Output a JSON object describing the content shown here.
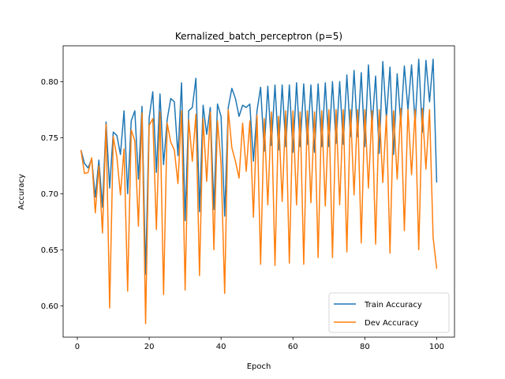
{
  "chart_data": {
    "type": "line",
    "title": "Kernalized_batch_perceptron (p=5)",
    "xlabel": "Epoch",
    "ylabel": "Accuracy",
    "xlim": [
      -3.95,
      104.95
    ],
    "ylim": [
      0.572,
      0.832
    ],
    "xticks": [
      0,
      20,
      40,
      60,
      80,
      100
    ],
    "yticks": [
      0.6,
      0.65,
      0.7,
      0.75,
      0.8
    ],
    "ytick_labels": [
      "0.60",
      "0.65",
      "0.70",
      "0.75",
      "0.80"
    ],
    "legend_position": "lower-right",
    "series": [
      {
        "name": "Train Accuracy",
        "color": "#1f77b4",
        "x": [
          1,
          2,
          3,
          4,
          5,
          6,
          7,
          8,
          9,
          10,
          11,
          12,
          13,
          14,
          15,
          16,
          17,
          18,
          19,
          20,
          21,
          22,
          23,
          24,
          25,
          26,
          27,
          28,
          29,
          30,
          31,
          32,
          33,
          34,
          35,
          36,
          37,
          38,
          39,
          40,
          41,
          42,
          43,
          44,
          45,
          46,
          47,
          48,
          49,
          50,
          51,
          52,
          53,
          54,
          55,
          56,
          57,
          58,
          59,
          60,
          61,
          62,
          63,
          64,
          65,
          66,
          67,
          68,
          69,
          70,
          71,
          72,
          73,
          74,
          75,
          76,
          77,
          78,
          79,
          80,
          81,
          82,
          83,
          84,
          85,
          86,
          87,
          88,
          89,
          90,
          91,
          92,
          93,
          94,
          95,
          96,
          97,
          98,
          99,
          100
        ],
        "values": [
          0.739,
          0.727,
          0.723,
          0.731,
          0.697,
          0.73,
          0.688,
          0.764,
          0.705,
          0.755,
          0.752,
          0.735,
          0.774,
          0.7,
          0.765,
          0.774,
          0.713,
          0.778,
          0.628,
          0.768,
          0.791,
          0.719,
          0.789,
          0.726,
          0.766,
          0.785,
          0.782,
          0.734,
          0.799,
          0.676,
          0.774,
          0.777,
          0.803,
          0.684,
          0.779,
          0.753,
          0.777,
          0.686,
          0.78,
          0.769,
          0.68,
          0.777,
          0.794,
          0.785,
          0.769,
          0.779,
          0.777,
          0.78,
          0.729,
          0.774,
          0.795,
          0.738,
          0.796,
          0.743,
          0.797,
          0.739,
          0.797,
          0.742,
          0.797,
          0.737,
          0.799,
          0.742,
          0.798,
          0.744,
          0.797,
          0.737,
          0.798,
          0.742,
          0.799,
          0.742,
          0.8,
          0.745,
          0.8,
          0.744,
          0.806,
          0.751,
          0.81,
          0.751,
          0.808,
          0.742,
          0.815,
          0.76,
          0.805,
          0.736,
          0.818,
          0.767,
          0.813,
          0.735,
          0.807,
          0.762,
          0.814,
          0.775,
          0.815,
          0.762,
          0.82,
          0.755,
          0.819,
          0.782,
          0.82,
          0.71
        ]
      },
      {
        "name": "Dev Accuracy",
        "color": "#ff7f0e",
        "x": [
          1,
          2,
          3,
          4,
          5,
          6,
          7,
          8,
          9,
          10,
          11,
          12,
          13,
          14,
          15,
          16,
          17,
          18,
          19,
          20,
          21,
          22,
          23,
          24,
          25,
          26,
          27,
          28,
          29,
          30,
          31,
          32,
          33,
          34,
          35,
          36,
          37,
          38,
          39,
          40,
          41,
          42,
          43,
          44,
          45,
          46,
          47,
          48,
          49,
          50,
          51,
          52,
          53,
          54,
          55,
          56,
          57,
          58,
          59,
          60,
          61,
          62,
          63,
          64,
          65,
          66,
          67,
          68,
          69,
          70,
          71,
          72,
          73,
          74,
          75,
          76,
          77,
          78,
          79,
          80,
          81,
          82,
          83,
          84,
          85,
          86,
          87,
          88,
          89,
          90,
          91,
          92,
          93,
          94,
          95,
          96,
          97,
          98,
          99,
          100
        ],
        "values": [
          0.739,
          0.718,
          0.719,
          0.732,
          0.683,
          0.725,
          0.665,
          0.762,
          0.598,
          0.751,
          0.733,
          0.699,
          0.74,
          0.613,
          0.757,
          0.747,
          0.671,
          0.772,
          0.584,
          0.761,
          0.767,
          0.668,
          0.773,
          0.61,
          0.763,
          0.746,
          0.739,
          0.709,
          0.774,
          0.614,
          0.766,
          0.729,
          0.771,
          0.627,
          0.767,
          0.711,
          0.773,
          0.65,
          0.765,
          0.727,
          0.611,
          0.775,
          0.741,
          0.729,
          0.714,
          0.763,
          0.72,
          0.765,
          0.679,
          0.77,
          0.637,
          0.767,
          0.69,
          0.773,
          0.636,
          0.769,
          0.693,
          0.774,
          0.638,
          0.774,
          0.69,
          0.773,
          0.637,
          0.774,
          0.692,
          0.773,
          0.643,
          0.774,
          0.689,
          0.775,
          0.643,
          0.775,
          0.69,
          0.775,
          0.648,
          0.775,
          0.699,
          0.775,
          0.656,
          0.775,
          0.705,
          0.774,
          0.655,
          0.775,
          0.71,
          0.77,
          0.647,
          0.774,
          0.713,
          0.776,
          0.667,
          0.775,
          0.717,
          0.775,
          0.65,
          0.776,
          0.722,
          0.775,
          0.661,
          0.633
        ]
      }
    ]
  }
}
